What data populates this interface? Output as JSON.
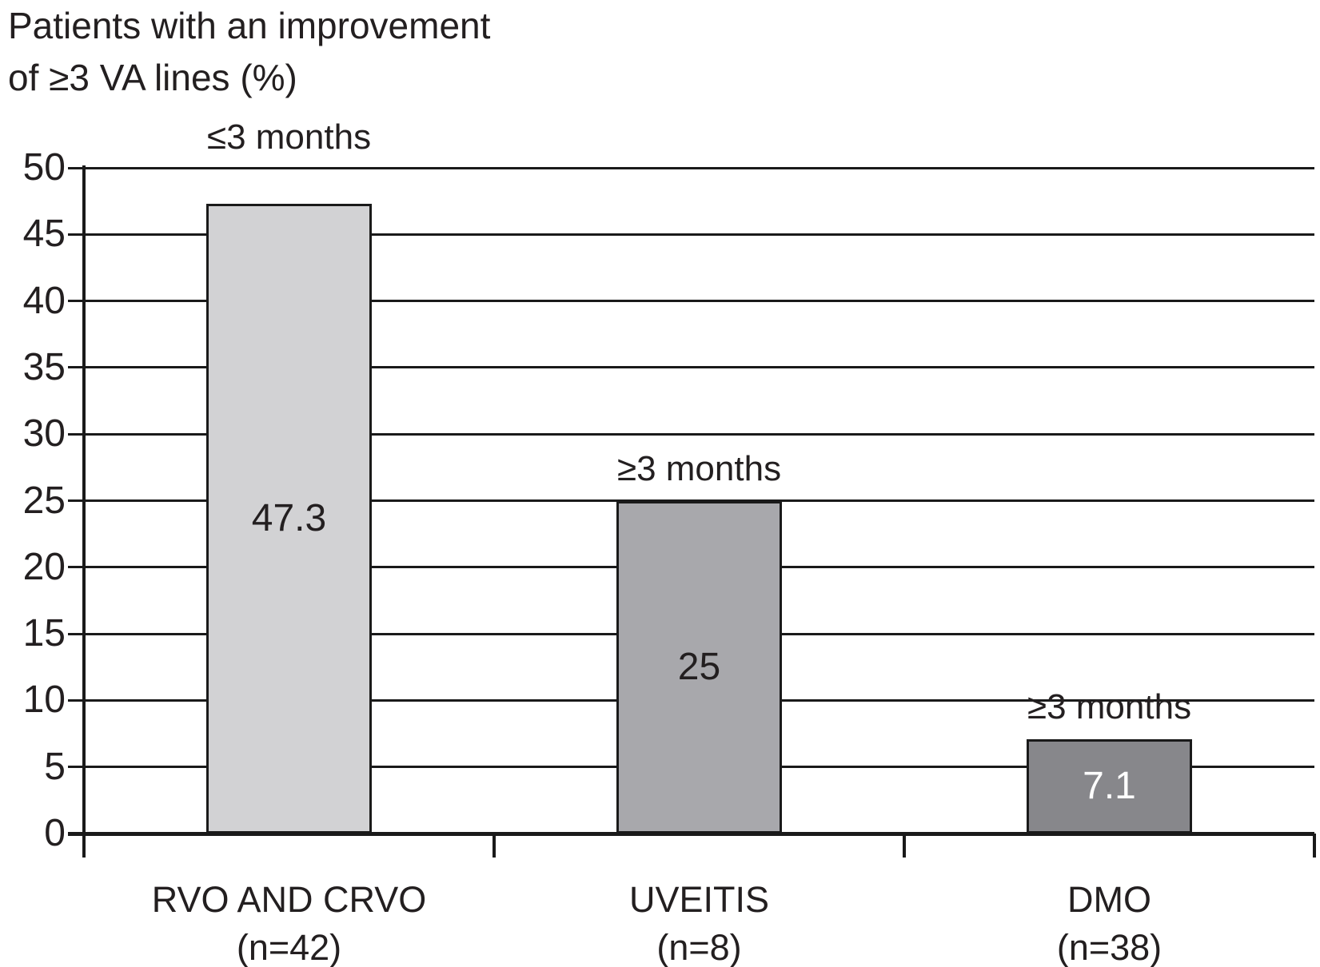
{
  "figure": {
    "background": "#ffffff"
  },
  "chart_data": {
    "type": "bar",
    "title": "Patients with an improvement\nof ≥3 VA lines (%)",
    "categories": [
      "RVO AND CRVO\n(n=42)",
      "UVEITIS\n(n=8)",
      "DMO\n(n=38)"
    ],
    "values": [
      47.3,
      25,
      7.1
    ],
    "value_labels": [
      "47.3",
      "25",
      "7.1"
    ],
    "bar_annotations": [
      "≤3 months",
      "≥3 months",
      "≥3 months"
    ],
    "bar_colors": [
      "#d2d2d4",
      "#a8a8ac",
      "#87878b"
    ],
    "value_label_colors": [
      "#231f20",
      "#231f20",
      "#ffffff"
    ],
    "bar_border_color": "#1a1a1a",
    "axis_color": "#1a1a1a",
    "text_color": "#231f20",
    "xlabel": "",
    "ylabel": "",
    "ylim": [
      0,
      50
    ],
    "yticks": [
      0,
      5,
      10,
      15,
      20,
      25,
      30,
      35,
      40,
      45,
      50
    ],
    "grid": "horizontal",
    "legend": "none"
  }
}
